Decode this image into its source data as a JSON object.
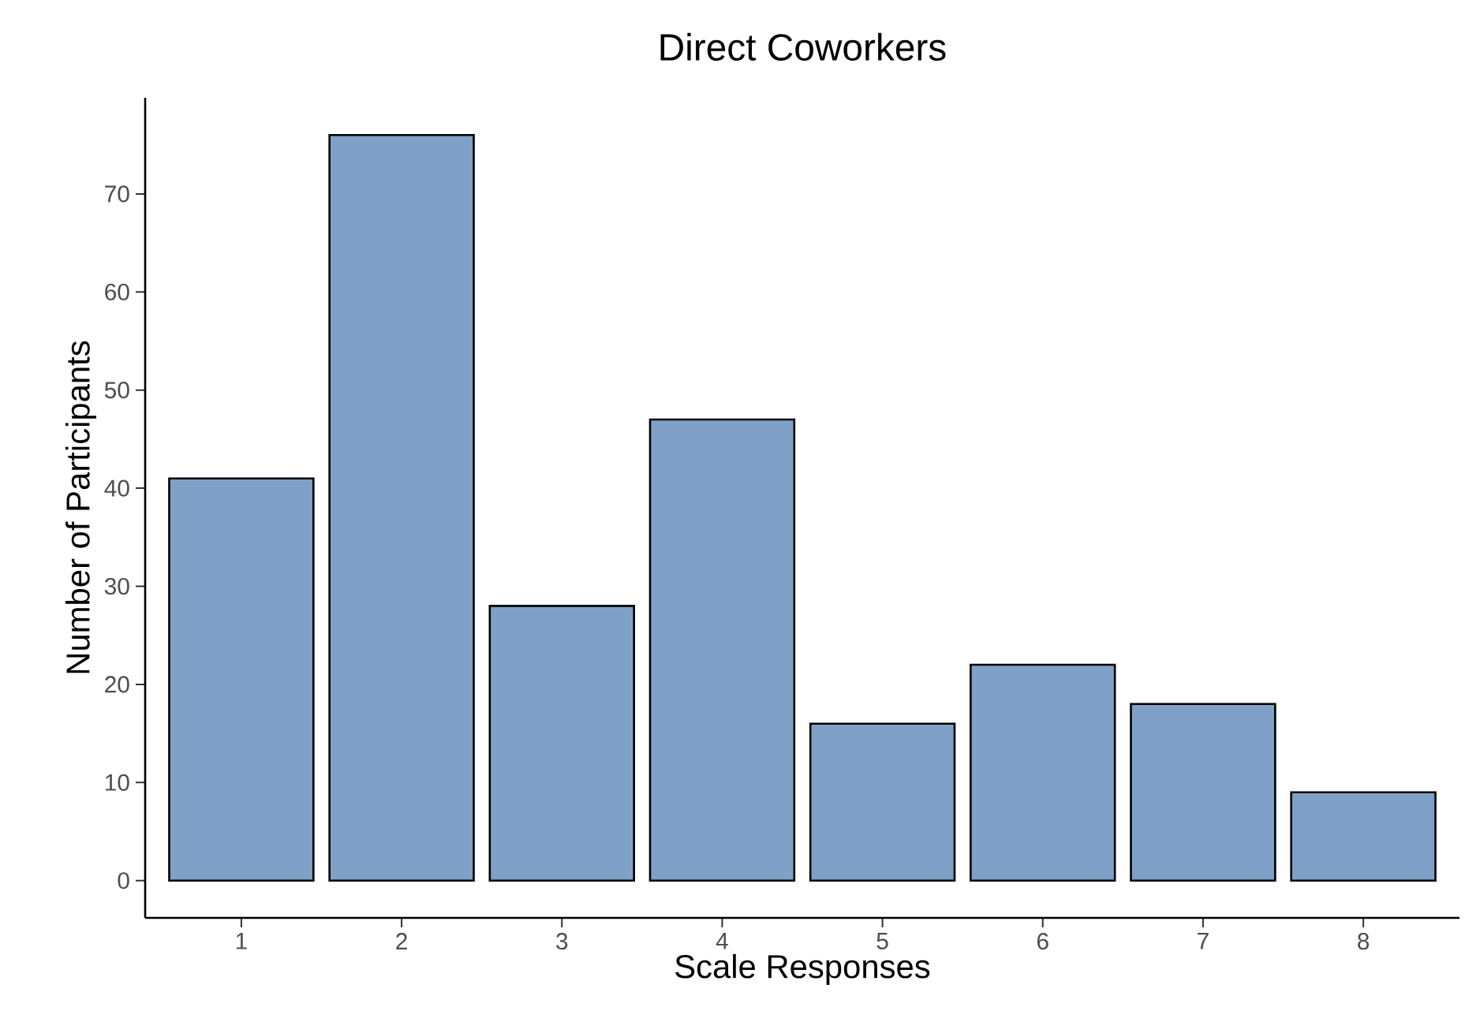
{
  "chart_data": {
    "type": "bar",
    "title": "Direct Coworkers",
    "xlabel": "Scale Responses",
    "ylabel": "Number of Participants",
    "categories": [
      "1",
      "2",
      "3",
      "4",
      "5",
      "6",
      "7",
      "8"
    ],
    "values": [
      41,
      76,
      28,
      47,
      16,
      22,
      18,
      9
    ],
    "color": "#7fa0c7",
    "ylim": [
      -3.8,
      79.8
    ],
    "yticks": [
      0,
      10,
      20,
      30,
      40,
      50,
      60,
      70
    ],
    "grid": false
  }
}
